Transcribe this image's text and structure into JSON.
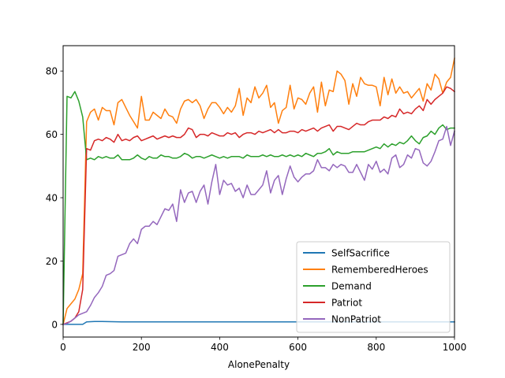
{
  "chart_data": {
    "type": "line",
    "xlabel": "AlonePenalty",
    "ylabel": "",
    "xlim": [
      0,
      1000
    ],
    "ylim": [
      -4,
      88
    ],
    "xticks": [
      0,
      200,
      400,
      600,
      800,
      1000
    ],
    "yticks": [
      0,
      20,
      40,
      60,
      80
    ],
    "grid": false,
    "legend_position": "lower-right",
    "series": [
      {
        "name": "SelfSacrifice",
        "color": "#1f77b4",
        "x": [
          0,
          10,
          20,
          30,
          40,
          50,
          60,
          80,
          100,
          150,
          200,
          250,
          300,
          350,
          400,
          450,
          500,
          550,
          600,
          650,
          700,
          750,
          800,
          850,
          900,
          950,
          1000
        ],
        "y": [
          0,
          0,
          0,
          0,
          0,
          0,
          0.8,
          0.9,
          0.9,
          0.8,
          0.8,
          0.8,
          0.8,
          0.8,
          0.8,
          0.8,
          0.8,
          0.8,
          0.8,
          0.8,
          0.8,
          0.8,
          0.8,
          0.8,
          0.8,
          0.8,
          0.8
        ]
      },
      {
        "name": "RememberedHeroes",
        "color": "#ff7f0e",
        "x": [
          0,
          10,
          20,
          30,
          40,
          50,
          60,
          70,
          80,
          90,
          100,
          110,
          120,
          130,
          140,
          150,
          160,
          170,
          180,
          190,
          200,
          210,
          220,
          230,
          240,
          250,
          260,
          270,
          280,
          290,
          300,
          310,
          320,
          330,
          340,
          350,
          360,
          370,
          380,
          390,
          400,
          410,
          420,
          430,
          440,
          450,
          460,
          470,
          480,
          490,
          500,
          510,
          520,
          530,
          540,
          550,
          560,
          570,
          580,
          590,
          600,
          610,
          620,
          630,
          640,
          650,
          660,
          670,
          680,
          690,
          700,
          710,
          720,
          730,
          740,
          750,
          760,
          770,
          780,
          790,
          800,
          810,
          820,
          830,
          840,
          850,
          860,
          870,
          880,
          890,
          900,
          910,
          920,
          930,
          940,
          950,
          960,
          970,
          980,
          990,
          1000
        ],
        "y": [
          0,
          5,
          6.5,
          8,
          11,
          16,
          64,
          67,
          68,
          64.5,
          68.5,
          67.5,
          67.5,
          63,
          70,
          71,
          68.5,
          66,
          64,
          62,
          72,
          64.5,
          64.5,
          67,
          66,
          65,
          68,
          66,
          65.5,
          63.5,
          68,
          70.5,
          71,
          70,
          71,
          69,
          65,
          68,
          70,
          70,
          68.5,
          66.5,
          68.5,
          67,
          69,
          74.5,
          66,
          71.5,
          70,
          75,
          71.5,
          73,
          75.5,
          68.5,
          70,
          63.5,
          67.5,
          68.5,
          75.5,
          68,
          71.5,
          71,
          69.5,
          73,
          75,
          67,
          76.5,
          69,
          74,
          73.5,
          80,
          79,
          77,
          69.5,
          76,
          72,
          78,
          76,
          75.5,
          75.5,
          75,
          69,
          78,
          72.5,
          77.5,
          73,
          75,
          73,
          73.5,
          71.5,
          73,
          74.5,
          70.5,
          76,
          74,
          79,
          77.5,
          73,
          76.5,
          78,
          84
        ]
      },
      {
        "name": "Demand",
        "color": "#2ca02c",
        "x": [
          0,
          10,
          20,
          30,
          40,
          50,
          60,
          70,
          80,
          90,
          100,
          110,
          120,
          130,
          140,
          150,
          160,
          170,
          180,
          190,
          200,
          210,
          220,
          230,
          240,
          250,
          260,
          270,
          280,
          290,
          300,
          310,
          320,
          330,
          340,
          350,
          360,
          370,
          380,
          390,
          400,
          410,
          420,
          430,
          440,
          450,
          460,
          470,
          480,
          490,
          500,
          510,
          520,
          530,
          540,
          550,
          560,
          570,
          580,
          590,
          600,
          610,
          620,
          630,
          640,
          650,
          660,
          670,
          680,
          690,
          700,
          710,
          720,
          730,
          740,
          750,
          760,
          770,
          780,
          790,
          800,
          810,
          820,
          830,
          840,
          850,
          860,
          870,
          880,
          890,
          900,
          910,
          920,
          930,
          940,
          950,
          960,
          970,
          980,
          990,
          1000
        ],
        "y": [
          0,
          72,
          71.5,
          73.5,
          70.5,
          65.5,
          52,
          52.5,
          52,
          53,
          52.5,
          53,
          52.5,
          52.5,
          53.5,
          52,
          52,
          52,
          52.5,
          53.5,
          52.5,
          52,
          53,
          52.5,
          52.5,
          53.5,
          53,
          53,
          52.5,
          52.5,
          53,
          54,
          53.5,
          52.5,
          53,
          53,
          52.5,
          53,
          53.5,
          53,
          52.5,
          53,
          52.5,
          53,
          53,
          53,
          52.5,
          53.5,
          53,
          53,
          53,
          53.5,
          53,
          53.5,
          53,
          53,
          53.5,
          53,
          53.5,
          53,
          53.5,
          53,
          54,
          53.5,
          53,
          54,
          54,
          54.5,
          55.5,
          53.5,
          54.5,
          54,
          54,
          54,
          54.5,
          54.5,
          54.5,
          54.5,
          55,
          55.5,
          56,
          55.5,
          57,
          56,
          57,
          56.5,
          57.5,
          57,
          58,
          59.5,
          58,
          57,
          59,
          59.5,
          61,
          60,
          62,
          63,
          61.5,
          62,
          62
        ]
      },
      {
        "name": "Patriot",
        "color": "#d62728",
        "x": [
          0,
          10,
          20,
          30,
          40,
          50,
          60,
          70,
          80,
          90,
          100,
          110,
          120,
          130,
          140,
          150,
          160,
          170,
          180,
          190,
          200,
          210,
          220,
          230,
          240,
          250,
          260,
          270,
          280,
          290,
          300,
          310,
          320,
          330,
          340,
          350,
          360,
          370,
          380,
          390,
          400,
          410,
          420,
          430,
          440,
          450,
          460,
          470,
          480,
          490,
          500,
          510,
          520,
          530,
          540,
          550,
          560,
          570,
          580,
          590,
          600,
          610,
          620,
          630,
          640,
          650,
          660,
          670,
          680,
          690,
          700,
          710,
          720,
          730,
          740,
          750,
          760,
          770,
          780,
          790,
          800,
          810,
          820,
          830,
          840,
          850,
          860,
          870,
          880,
          890,
          900,
          910,
          920,
          930,
          940,
          950,
          960,
          970,
          980,
          990,
          1000
        ],
        "y": [
          0,
          0.5,
          1,
          2,
          4,
          11,
          55.5,
          55,
          58,
          58.5,
          58,
          59,
          58.5,
          57.5,
          60,
          58,
          58.5,
          58,
          59,
          59.5,
          58,
          58.5,
          59,
          59.5,
          58.5,
          59,
          59.5,
          59,
          59.5,
          59,
          59,
          60,
          62,
          61.5,
          59,
          60,
          60,
          59.5,
          60.5,
          60,
          59.5,
          59.5,
          60.5,
          60,
          60.5,
          59,
          60,
          60.5,
          60.5,
          60,
          61,
          60.5,
          61,
          61.5,
          60.5,
          61.5,
          60.5,
          60.5,
          61,
          61,
          60.5,
          61.5,
          61,
          61.5,
          62,
          61,
          62,
          62.5,
          63,
          61,
          62.5,
          62.5,
          62,
          61.5,
          62.5,
          63.5,
          63,
          63,
          64,
          64.5,
          64.5,
          64.5,
          65.5,
          65,
          66,
          65.5,
          68,
          66.5,
          67,
          66.5,
          68,
          69,
          67.5,
          71,
          69.5,
          71,
          72,
          73,
          75,
          74.5,
          73.5
        ]
      },
      {
        "name": "NonPatriot",
        "color": "#9467bd",
        "x": [
          0,
          10,
          20,
          30,
          40,
          50,
          60,
          70,
          80,
          90,
          100,
          110,
          120,
          130,
          140,
          150,
          160,
          170,
          180,
          190,
          200,
          210,
          220,
          230,
          240,
          250,
          260,
          270,
          280,
          290,
          300,
          310,
          320,
          330,
          340,
          350,
          360,
          370,
          380,
          390,
          400,
          410,
          420,
          430,
          440,
          450,
          460,
          470,
          480,
          490,
          500,
          510,
          520,
          530,
          540,
          550,
          560,
          570,
          580,
          590,
          600,
          610,
          620,
          630,
          640,
          650,
          660,
          670,
          680,
          690,
          700,
          710,
          720,
          730,
          740,
          750,
          760,
          770,
          780,
          790,
          800,
          810,
          820,
          830,
          840,
          850,
          860,
          870,
          880,
          890,
          900,
          910,
          920,
          930,
          940,
          950,
          960,
          970,
          980,
          990,
          1000
        ],
        "y": [
          0,
          0.3,
          1,
          2,
          3,
          3.5,
          4,
          6,
          8.5,
          10,
          12,
          15.5,
          16,
          17,
          21.5,
          22,
          22.5,
          25.5,
          27,
          25.5,
          30,
          31,
          31,
          32.5,
          31.5,
          34,
          36.5,
          36,
          38,
          32.5,
          42.5,
          38.5,
          41.5,
          42,
          38.5,
          42,
          44,
          38,
          45,
          50.5,
          41,
          45.5,
          44,
          44.5,
          42,
          43,
          40,
          44,
          41,
          41,
          42.5,
          44,
          48.5,
          41.5,
          45.5,
          47,
          41,
          46,
          50,
          46.5,
          45,
          46.5,
          47.5,
          47.5,
          48.5,
          52,
          49.5,
          49.5,
          48.5,
          50.5,
          49.5,
          50.5,
          50,
          48,
          48,
          50.5,
          48,
          45.5,
          50.5,
          49,
          51.5,
          48,
          49,
          47.5,
          52.5,
          53.5,
          49.5,
          50.5,
          53.5,
          52.5,
          55.5,
          55,
          51,
          50,
          51.5,
          54.5,
          58,
          58.5,
          62.5,
          56.5,
          61
        ]
      }
    ]
  }
}
